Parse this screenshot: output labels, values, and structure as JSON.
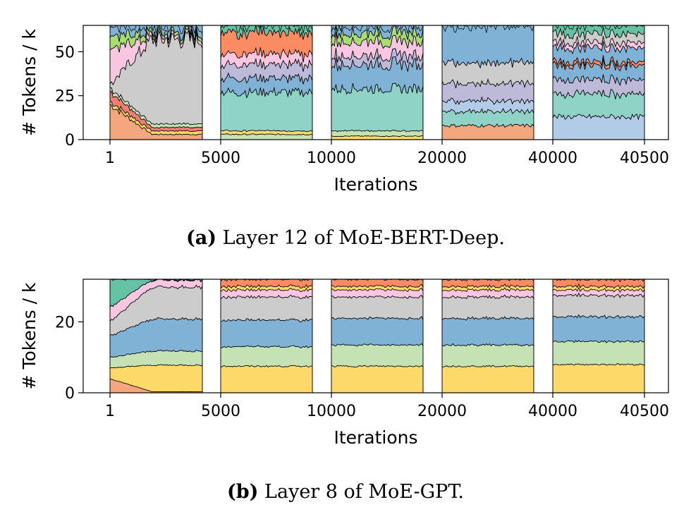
{
  "palette": [
    "#f4a77f",
    "#fdd96a",
    "#c4e2b4",
    "#7fb2d5",
    "#cccccc",
    "#f9c6e2",
    "#a9dc71",
    "#fb8b62",
    "#8fd3c7",
    "#bcb9d9",
    "#b2cce8",
    "#f47c72",
    "#66c2a5"
  ],
  "chart_data": [
    {
      "type": "area",
      "title": "",
      "caption_prefix": "(a)",
      "caption_text": " Layer 12 of MoE-BERT-Deep.",
      "xlabel": "Iterations",
      "ylabel": "# Tokens / k",
      "xticks": [
        "1",
        "5000",
        "10000",
        "20000",
        "40000",
        "40500"
      ],
      "yticks": [
        0,
        25,
        50
      ],
      "ylim": [
        0,
        65
      ],
      "segments": [
        {
          "range": "1-5000",
          "bands": [
            {
              "color": "#f4a77f",
              "start": 20,
              "end": 3
            },
            {
              "color": "#fdd96a",
              "start": 2,
              "end": 2
            },
            {
              "color": "#f47c72",
              "start": 6,
              "end": 2
            },
            {
              "color": "#c4e2b4",
              "start": 2,
              "end": 2
            },
            {
              "color": "#cccccc",
              "start": 2,
              "end": 48
            },
            {
              "color": "#f9c6e2",
              "start": 20,
              "end": 2
            },
            {
              "color": "#a9dc71",
              "start": 8,
              "end": 2
            },
            {
              "color": "#7fb2d5",
              "start": 5,
              "end": 4
            }
          ]
        },
        {
          "range": "5000-10000",
          "bands": [
            {
              "color": "#c4e2b4",
              "start": 3,
              "end": 3
            },
            {
              "color": "#fdd96a",
              "start": 2,
              "end": 2
            },
            {
              "color": "#8fd3c7",
              "start": 22,
              "end": 22
            },
            {
              "color": "#7fb2d5",
              "start": 8,
              "end": 8
            },
            {
              "color": "#bcb9d9",
              "start": 8,
              "end": 8
            },
            {
              "color": "#f9c6e2",
              "start": 6,
              "end": 6
            },
            {
              "color": "#fb8b62",
              "start": 12,
              "end": 12
            },
            {
              "color": "#66c2a5",
              "start": 4,
              "end": 4
            }
          ]
        },
        {
          "range": "10000-20000",
          "bands": [
            {
              "color": "#fdd96a",
              "start": 2,
              "end": 2
            },
            {
              "color": "#c4e2b4",
              "start": 3,
              "end": 3
            },
            {
              "color": "#8fd3c7",
              "start": 24,
              "end": 24
            },
            {
              "color": "#7fb2d5",
              "start": 14,
              "end": 14
            },
            {
              "color": "#bcb9d9",
              "start": 5,
              "end": 5
            },
            {
              "color": "#f9c6e2",
              "start": 8,
              "end": 8
            },
            {
              "color": "#a9dc71",
              "start": 5,
              "end": 5
            },
            {
              "color": "#7fb2d5",
              "start": 4,
              "end": 4
            }
          ]
        },
        {
          "range": "20000-40000",
          "bands": [
            {
              "color": "#f4a77f",
              "start": 8,
              "end": 8
            },
            {
              "color": "#8fd3c7",
              "start": 8,
              "end": 8
            },
            {
              "color": "#b2cce8",
              "start": 6,
              "end": 6
            },
            {
              "color": "#bcb9d9",
              "start": 10,
              "end": 10
            },
            {
              "color": "#cccccc",
              "start": 12,
              "end": 12
            },
            {
              "color": "#7fb2d5",
              "start": 21,
              "end": 21
            }
          ]
        },
        {
          "range": "40000-40500",
          "bands": [
            {
              "color": "#b2cce8",
              "start": 13,
              "end": 13
            },
            {
              "color": "#8fd3c7",
              "start": 13,
              "end": 13
            },
            {
              "color": "#bcb9d9",
              "start": 8,
              "end": 8
            },
            {
              "color": "#7fb2d5",
              "start": 8,
              "end": 8
            },
            {
              "color": "#fb8b62",
              "start": 2,
              "end": 2
            },
            {
              "color": "#7fb2d5",
              "start": 8,
              "end": 8
            },
            {
              "color": "#f9c6e2",
              "start": 3,
              "end": 3
            },
            {
              "color": "#cccccc",
              "start": 5,
              "end": 5
            },
            {
              "color": "#66c2a5",
              "start": 5,
              "end": 5
            }
          ]
        }
      ]
    },
    {
      "type": "area",
      "title": "",
      "caption_prefix": "(b)",
      "caption_text": " Layer 8 of MoE-GPT.",
      "xlabel": "Iterations",
      "ylabel": "# Tokens / k",
      "xticks": [
        "1",
        "5000",
        "10000",
        "20000",
        "40000",
        "40500"
      ],
      "yticks": [
        0,
        20
      ],
      "ylim": [
        0,
        32
      ],
      "segments": [
        {
          "range": "1-5000",
          "bands": [
            {
              "color": "#f4a77f",
              "start": 4,
              "end": 0.3
            },
            {
              "color": "#fdd96a",
              "start": 3,
              "end": 7.5
            },
            {
              "color": "#c4e2b4",
              "start": 3,
              "end": 4
            },
            {
              "color": "#7fb2d5",
              "start": 6,
              "end": 9
            },
            {
              "color": "#cccccc",
              "start": 4,
              "end": 9
            },
            {
              "color": "#f9c6e2",
              "start": 4,
              "end": 2
            },
            {
              "color": "#66c2a5",
              "start": 8,
              "end": 0.2
            }
          ]
        },
        {
          "range": "5000-10000",
          "bands": [
            {
              "color": "#fdd96a",
              "start": 7.5,
              "end": 7.5
            },
            {
              "color": "#c4e2b4",
              "start": 5.5,
              "end": 5.5
            },
            {
              "color": "#7fb2d5",
              "start": 7.5,
              "end": 7.5
            },
            {
              "color": "#cccccc",
              "start": 6.5,
              "end": 6.5
            },
            {
              "color": "#f9c6e2",
              "start": 2,
              "end": 2
            },
            {
              "color": "#fdd96a",
              "start": 1,
              "end": 1
            },
            {
              "color": "#fb8b62",
              "start": 2,
              "end": 2
            }
          ]
        },
        {
          "range": "10000-20000",
          "bands": [
            {
              "color": "#fdd96a",
              "start": 7.5,
              "end": 7.5
            },
            {
              "color": "#c4e2b4",
              "start": 6,
              "end": 6
            },
            {
              "color": "#7fb2d5",
              "start": 7.5,
              "end": 7.5
            },
            {
              "color": "#cccccc",
              "start": 6,
              "end": 6
            },
            {
              "color": "#f9c6e2",
              "start": 2,
              "end": 2
            },
            {
              "color": "#fdd96a",
              "start": 1,
              "end": 1
            },
            {
              "color": "#fb8b62",
              "start": 2,
              "end": 2
            }
          ]
        },
        {
          "range": "20000-40000",
          "bands": [
            {
              "color": "#fdd96a",
              "start": 7.5,
              "end": 7.5
            },
            {
              "color": "#c4e2b4",
              "start": 6,
              "end": 6
            },
            {
              "color": "#7fb2d5",
              "start": 7.5,
              "end": 7.5
            },
            {
              "color": "#cccccc",
              "start": 6,
              "end": 6
            },
            {
              "color": "#f9c6e2",
              "start": 2,
              "end": 2
            },
            {
              "color": "#fdd96a",
              "start": 1,
              "end": 1
            },
            {
              "color": "#fb8b62",
              "start": 2,
              "end": 2
            }
          ]
        },
        {
          "range": "40000-40500",
          "bands": [
            {
              "color": "#fdd96a",
              "start": 8,
              "end": 8
            },
            {
              "color": "#c4e2b4",
              "start": 6.5,
              "end": 6.5
            },
            {
              "color": "#7fb2d5",
              "start": 7,
              "end": 7
            },
            {
              "color": "#cccccc",
              "start": 6,
              "end": 6
            },
            {
              "color": "#f9c6e2",
              "start": 1.5,
              "end": 1.5
            },
            {
              "color": "#fdd96a",
              "start": 1,
              "end": 1
            },
            {
              "color": "#fb8b62",
              "start": 2,
              "end": 2
            }
          ]
        }
      ]
    }
  ]
}
